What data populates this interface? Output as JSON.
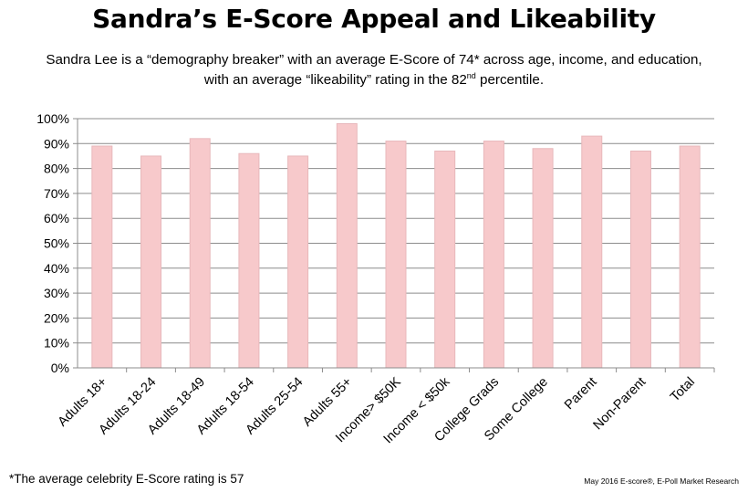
{
  "title": "Sandra’s E-Score Appeal and Likeability",
  "subtitle": {
    "line1": "Sandra Lee is a “demography breaker” with an average E-Score of 74* across age, income, and education,",
    "line2_before": "with an average “likeability” rating in the 82",
    "line2_sup": "nd",
    "line2_after": " percentile."
  },
  "footnote": "*The average celebrity E-Score rating is 57",
  "source": "May 2016 E-score®, E-Poll Market Research",
  "colors": {
    "bar_fill": "#f7c9cb",
    "bar_stroke": "#e8b8bb",
    "grid": "#8c8c8c",
    "axis": "#8c8c8c"
  },
  "chart_data": {
    "type": "bar",
    "categories": [
      "Adults 18+",
      "Adults 18-24",
      "Adults 18-49",
      "Adults 18-54",
      "Adults 25-54",
      "Adults 55+",
      "Income> $50K",
      "Income < $50k",
      "College Grads",
      "Some College",
      "Parent",
      "Non-Parent",
      "Total"
    ],
    "values": [
      89,
      85,
      92,
      86,
      85,
      98,
      91,
      87,
      91,
      88,
      93,
      87,
      89
    ],
    "ylim": [
      0,
      100
    ],
    "yticks": [
      0,
      10,
      20,
      30,
      40,
      50,
      60,
      70,
      80,
      90,
      100
    ],
    "ytick_labels": [
      "0%",
      "10%",
      "20%",
      "30%",
      "40%",
      "50%",
      "60%",
      "70%",
      "80%",
      "90%",
      "100%"
    ],
    "grid": true,
    "title": "",
    "xlabel": "",
    "ylabel": ""
  }
}
